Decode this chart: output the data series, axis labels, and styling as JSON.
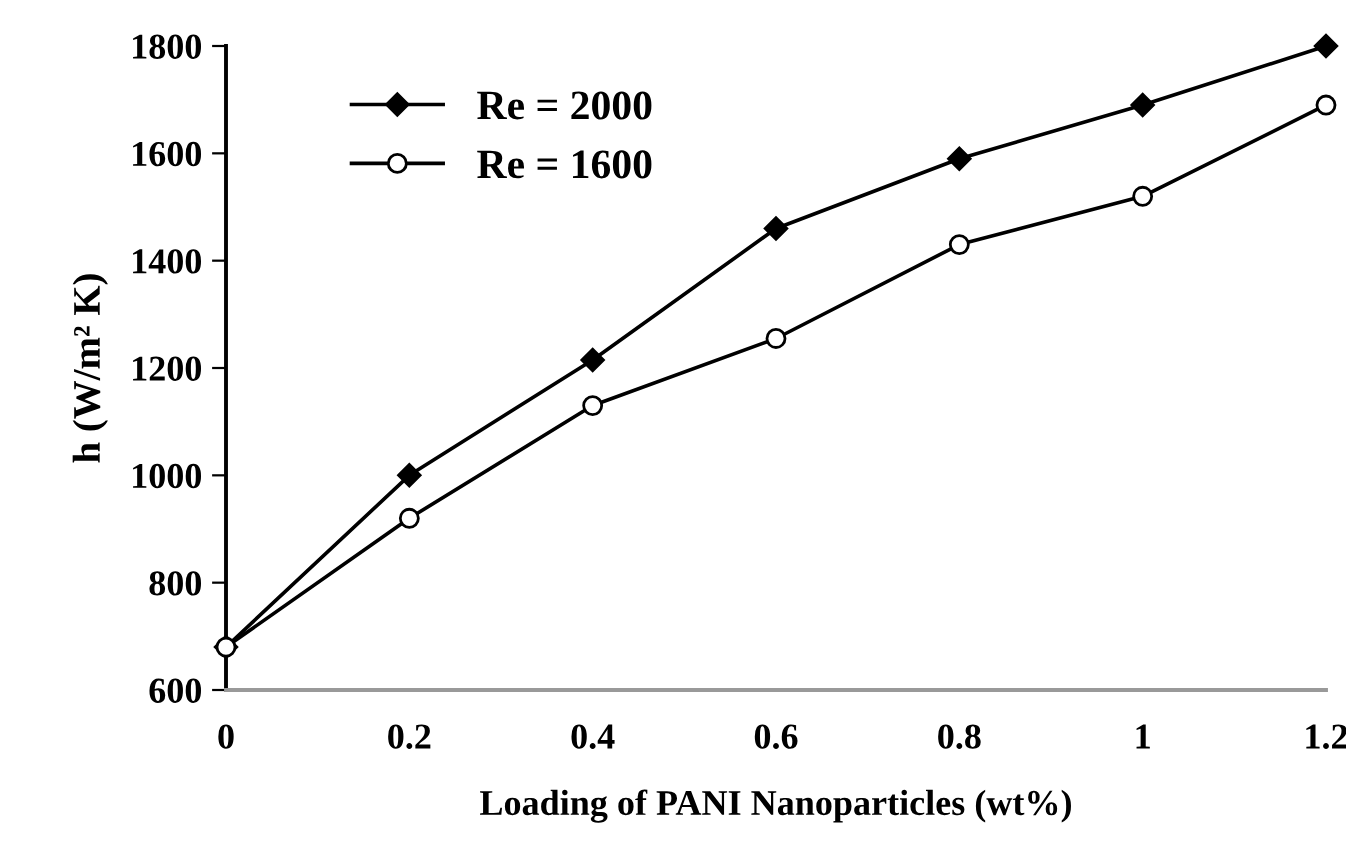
{
  "chart_data": {
    "type": "line",
    "xlabel": "Loading of PANI Nanoparticles (wt%)",
    "ylabel": "h (W/m² K)",
    "x": [
      0,
      0.2,
      0.4,
      0.6,
      0.8,
      1,
      1.2
    ],
    "series": [
      {
        "name": "Re = 2000",
        "color": "#000000",
        "marker": "diamond",
        "values": [
          680,
          1000,
          1215,
          1460,
          1590,
          1690,
          1800
        ]
      },
      {
        "name": "Re = 1600",
        "color": "#000000",
        "marker": "circle",
        "values": [
          680,
          920,
          1130,
          1255,
          1430,
          1520,
          1690
        ]
      }
    ],
    "xlim": [
      0,
      1.2
    ],
    "xticks": [
      0,
      0.2,
      0.4,
      0.6,
      0.8,
      1,
      1.2
    ],
    "ylim": [
      600,
      1800
    ],
    "yticks": [
      600,
      800,
      1000,
      1200,
      1400,
      1600,
      1800
    ],
    "grid": false,
    "legend": "top left",
    "line_style": "solid"
  }
}
